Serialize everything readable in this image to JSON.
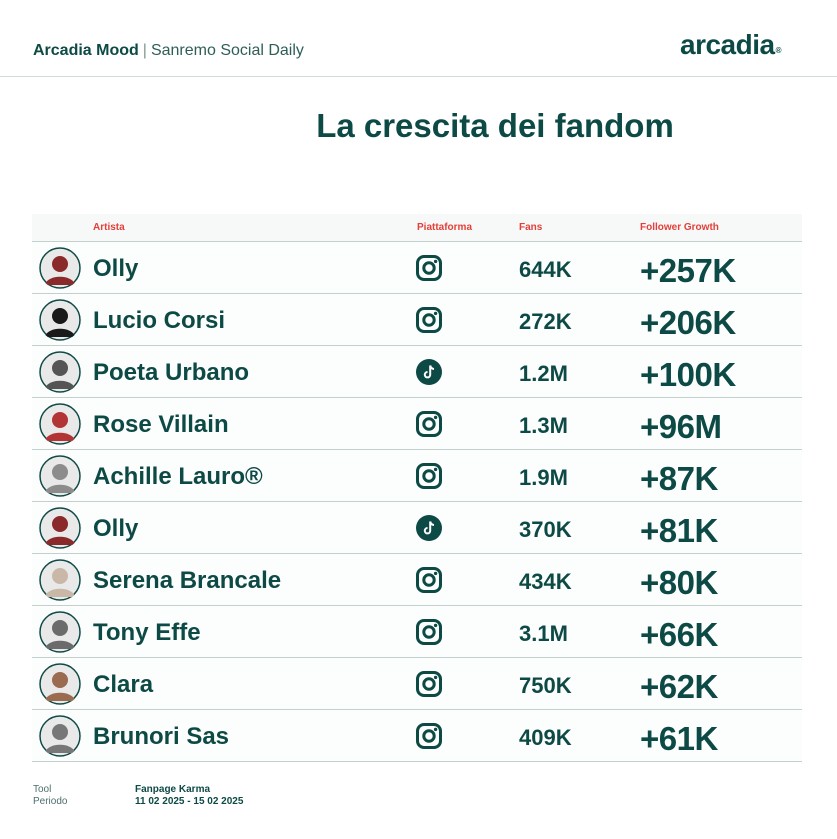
{
  "header": {
    "brand": "Arcadia Mood",
    "separator": "|",
    "subtitle": "Sanremo Social Daily",
    "logo": "arcadia",
    "logo_mark": "®"
  },
  "title": "La crescita dei fandom",
  "table": {
    "columns": {
      "artist": "Artista",
      "platform": "Piattaforma",
      "fans": "Fans",
      "growth": "Follower Growth"
    },
    "rows": [
      {
        "artist": "Olly",
        "platform": "instagram-icon",
        "fans": "644K",
        "growth": "+257K",
        "avatar": "#8a2a2a"
      },
      {
        "artist": "Lucio Corsi",
        "platform": "instagram-icon",
        "fans": "272K",
        "growth": "+206K",
        "avatar": "#1a1a1a"
      },
      {
        "artist": "Poeta Urbano",
        "platform": "tiktok-icon",
        "fans": "1.2M",
        "growth": "+100K",
        "avatar": "#555555"
      },
      {
        "artist": "Rose Villain",
        "platform": "instagram-icon",
        "fans": "1.3M",
        "growth": "+96M",
        "avatar": "#b33434"
      },
      {
        "artist": "Achille Lauro®",
        "platform": "instagram-icon",
        "fans": "1.9M",
        "growth": "+87K",
        "avatar": "#8c8c8c"
      },
      {
        "artist": "Olly",
        "platform": "tiktok-icon",
        "fans": "370K",
        "growth": "+81K",
        "avatar": "#8a2a2a"
      },
      {
        "artist": "Serena Brancale",
        "platform": "instagram-icon",
        "fans": "434K",
        "growth": "+80K",
        "avatar": "#c9b8a8"
      },
      {
        "artist": "Tony Effe",
        "platform": "instagram-icon",
        "fans": "3.1M",
        "growth": "+66K",
        "avatar": "#6b6b6b"
      },
      {
        "artist": "Clara",
        "platform": "instagram-icon",
        "fans": "750K",
        "growth": "+62K",
        "avatar": "#9a6b4e"
      },
      {
        "artist": "Brunori Sas",
        "platform": "instagram-icon",
        "fans": "409K",
        "growth": "+61K",
        "avatar": "#777777"
      }
    ]
  },
  "footer": {
    "tool_label": "Tool",
    "period_label": "Periodo",
    "tool_value": "Fanpage Karma",
    "period_value": "11 02 2025 - 15 02 2025"
  },
  "colors": {
    "primary": "#0d4a45",
    "header_accent": "#e1413a",
    "divider": "#c4d0ce"
  }
}
